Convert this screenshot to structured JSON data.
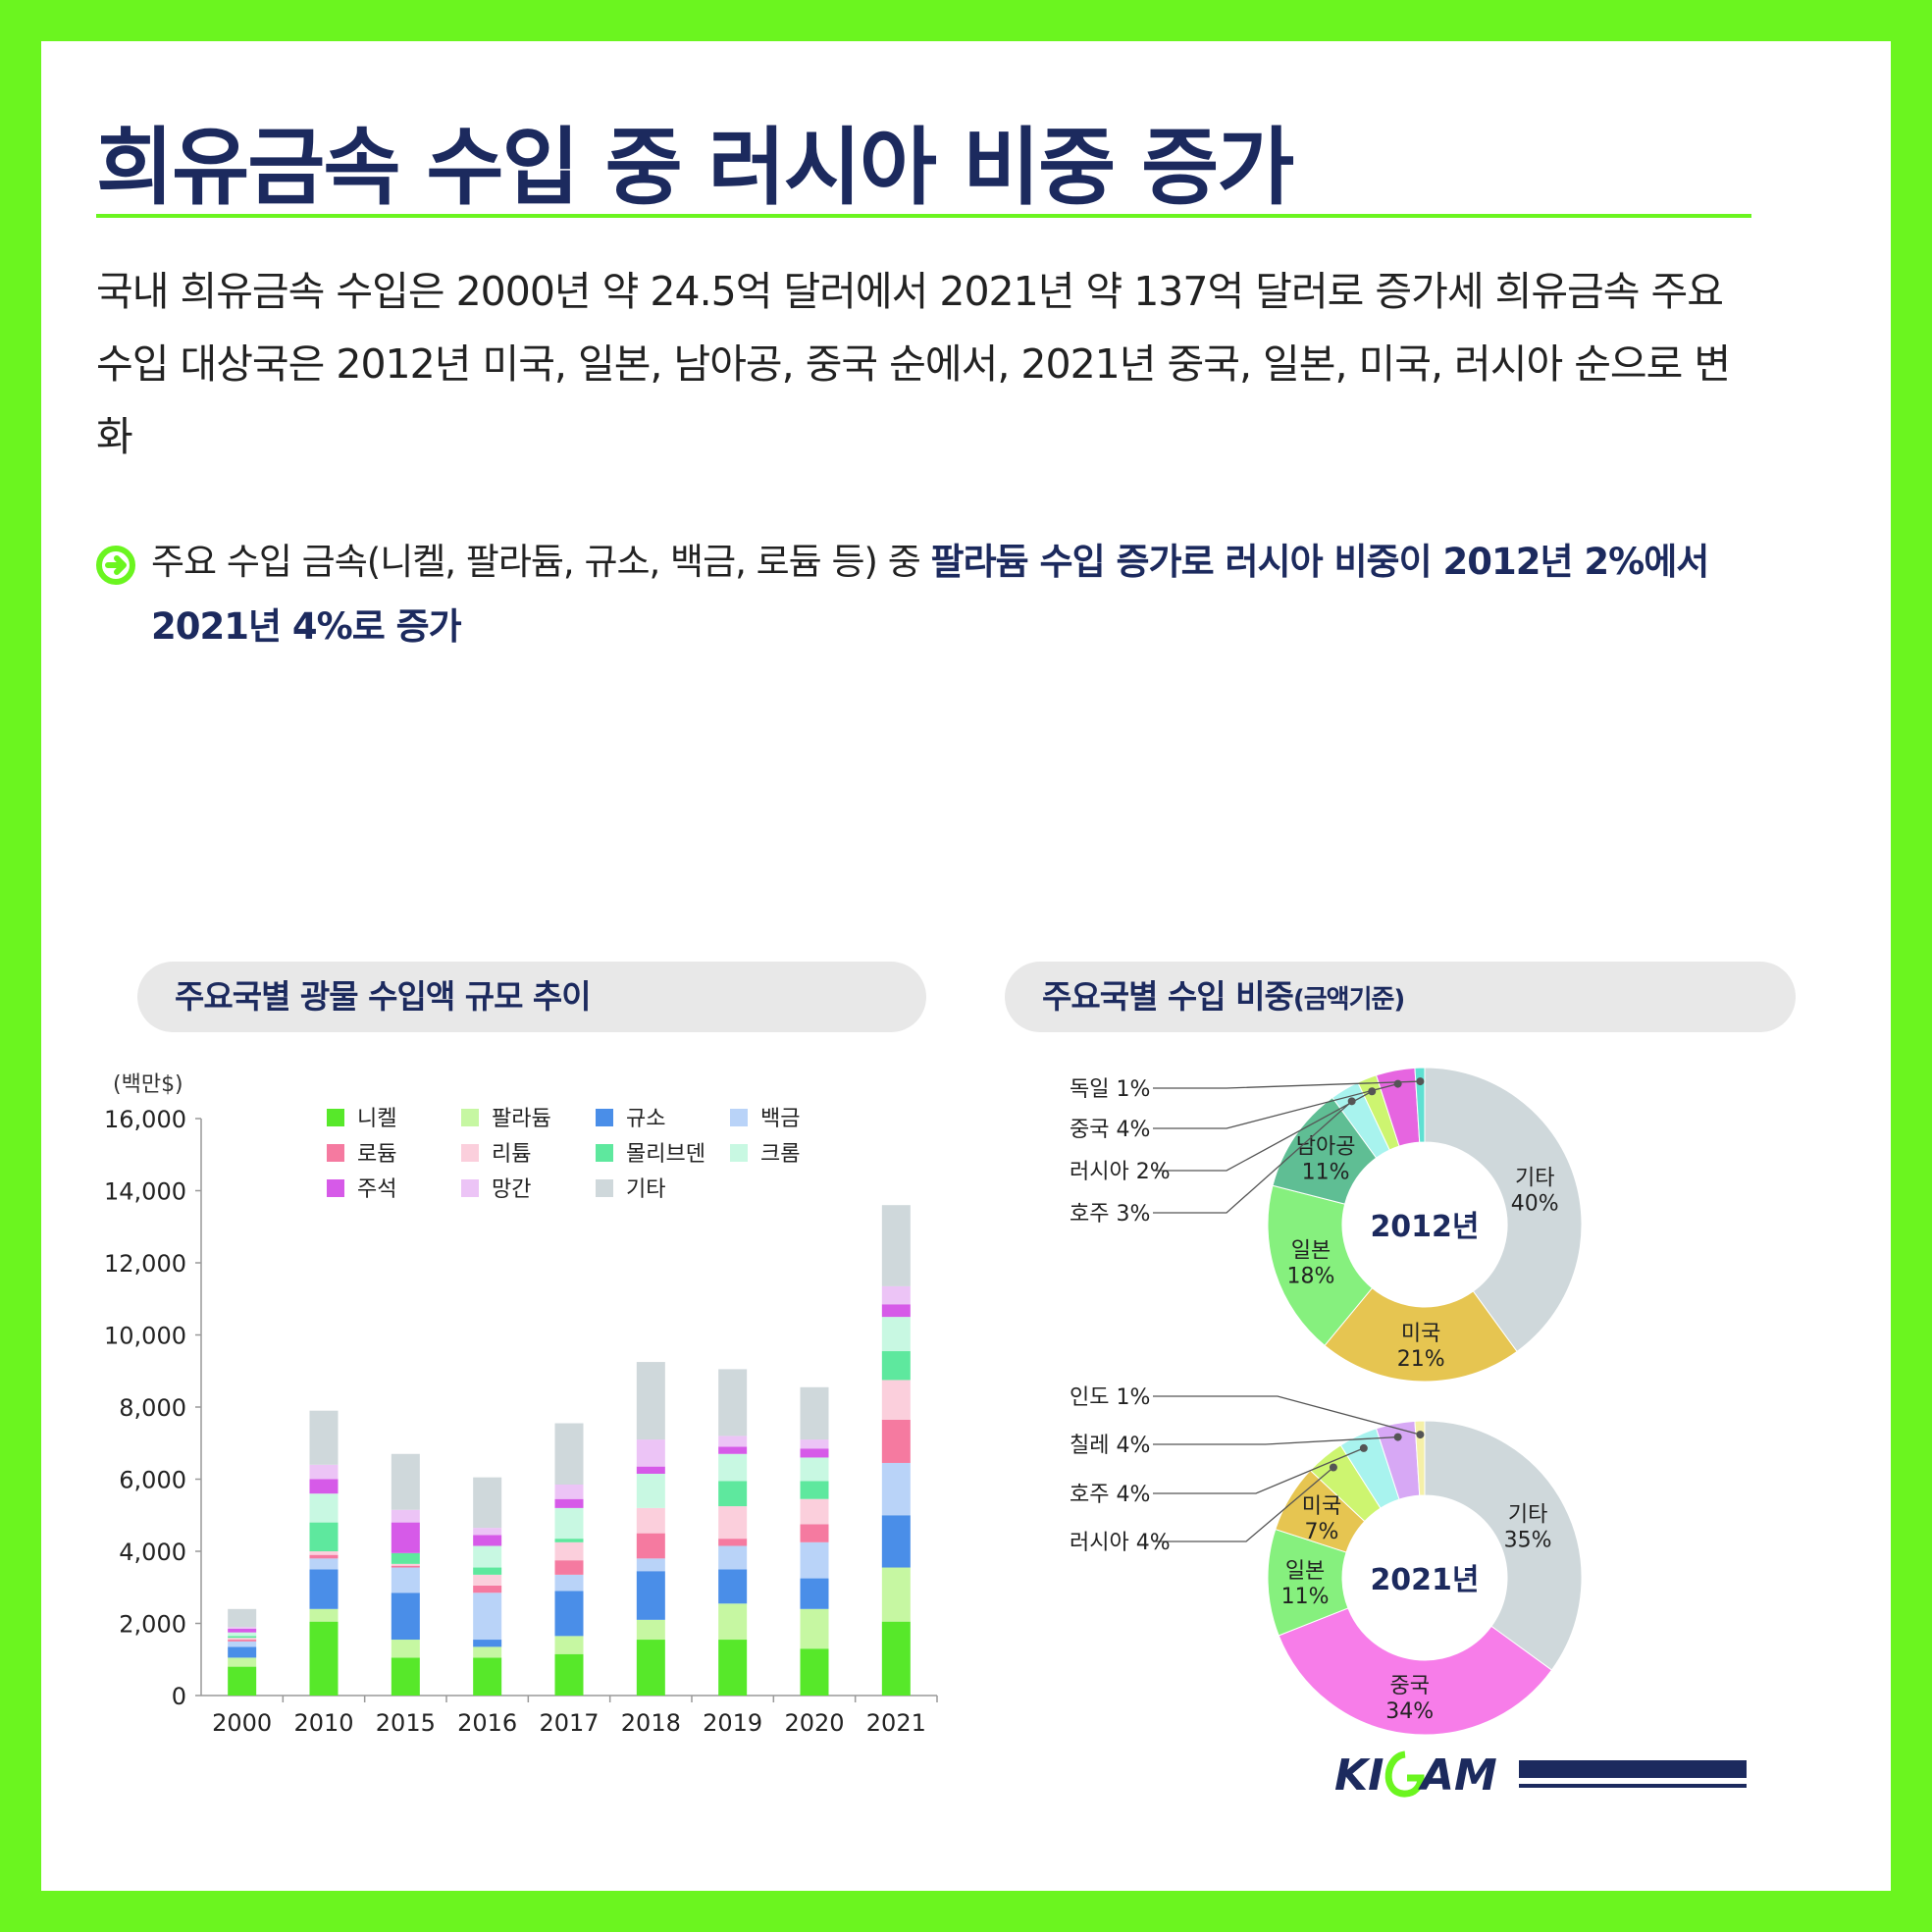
{
  "header": {
    "title": "희유금속 수입 중 러시아 비중 증가",
    "lead": "국내 희유금속 수입은 2000년 약 24.5억 달러에서 2021년 약 137억 달러로 증가세 희유금속 주요 수입 대상국은 2012년 미국, 일본, 남아공, 중국 순에서, 2021년 중국, 일본, 미국, 러시아 순으로 변화",
    "bullet_plain": "주요 수입 금속(니켈, 팔라듐, 규소, 백금, 로듐 등) 중 ",
    "bullet_highlight": "팔라듐 수입 증가로 러시아 비중이 2012년 2%에서 2021년 4%로 증가"
  },
  "colors": {
    "accent": "#6bf51f",
    "navy": "#1c2a5e",
    "pill": "#e8e8e8"
  },
  "bar_panel": {
    "heading": "주요국별 광물 수입액 규모 추이"
  },
  "pie_panel": {
    "heading": "주요국별 수입 비중",
    "heading_suffix": "(금액기준)"
  },
  "chart_data": [
    {
      "type": "bar",
      "stacked": true,
      "title": "주요국별 광물 수입액 규모 추이",
      "ylabel": "(백만$)",
      "ylim": [
        0,
        16000
      ],
      "yticks": [
        "0",
        "2,000",
        "4,000",
        "6,000",
        "8,000",
        "10,000",
        "12,000",
        "14,000",
        "16,000"
      ],
      "legend_position": "top",
      "categories": [
        "2000",
        "2010",
        "2015",
        "2016",
        "2017",
        "2018",
        "2019",
        "2020",
        "2021"
      ],
      "series": [
        {
          "name": "니켈",
          "color": "#57e82a",
          "values": [
            800,
            2050,
            1050,
            1050,
            1150,
            1550,
            1550,
            1300,
            2050
          ]
        },
        {
          "name": "팔라듐",
          "color": "#c6f7a2",
          "values": [
            250,
            350,
            500,
            300,
            500,
            550,
            1000,
            1100,
            1500
          ]
        },
        {
          "name": "규소",
          "color": "#4a8ee8",
          "values": [
            300,
            1100,
            1300,
            200,
            1250,
            1350,
            950,
            850,
            1450
          ]
        },
        {
          "name": "백금",
          "color": "#b9d3f8",
          "values": [
            150,
            300,
            700,
            1300,
            450,
            350,
            650,
            1000,
            1450
          ]
        },
        {
          "name": "로듐",
          "color": "#f57aa0",
          "values": [
            50,
            100,
            50,
            200,
            400,
            700,
            200,
            500,
            1200
          ]
        },
        {
          "name": "리튬",
          "color": "#fbcfdc",
          "values": [
            50,
            100,
            50,
            300,
            500,
            700,
            900,
            700,
            1100
          ]
        },
        {
          "name": "몰리브덴",
          "color": "#5ee89e",
          "values": [
            50,
            800,
            300,
            200,
            100,
            0,
            700,
            500,
            800
          ]
        },
        {
          "name": "크롬",
          "color": "#c8f8e2",
          "values": [
            100,
            800,
            0,
            600,
            850,
            950,
            750,
            650,
            950
          ]
        },
        {
          "name": "주석",
          "color": "#d65ae8",
          "values": [
            100,
            400,
            850,
            300,
            250,
            200,
            200,
            250,
            350
          ]
        },
        {
          "name": "망간",
          "color": "#ecc4f6",
          "values": [
            50,
            400,
            350,
            200,
            400,
            750,
            300,
            250,
            500
          ]
        },
        {
          "name": "기타",
          "color": "#cfd8db",
          "values": [
            500,
            1500,
            1550,
            1400,
            1700,
            2150,
            1850,
            1450,
            2250
          ]
        }
      ]
    },
    {
      "type": "pie",
      "title": "주요국별 수입 비중(금액기준)",
      "center_label": "2012년",
      "slices": [
        {
          "label": "기타",
          "value": 40,
          "color": "#cfd8db"
        },
        {
          "label": "미국",
          "value": 21,
          "color": "#e6c551"
        },
        {
          "label": "일본",
          "value": 18,
          "color": "#86f07e"
        },
        {
          "label": "남아공",
          "value": 11,
          "color": "#5fbe94"
        },
        {
          "label": "호주",
          "value": 3,
          "color": "#a8f3ee"
        },
        {
          "label": "러시아",
          "value": 2,
          "color": "#cdf570"
        },
        {
          "label": "중국",
          "value": 4,
          "color": "#e665e0"
        },
        {
          "label": "독일",
          "value": 1,
          "color": "#5fe0d2"
        }
      ]
    },
    {
      "type": "pie",
      "title": "주요국별 수입 비중(금액기준)",
      "center_label": "2021년",
      "slices": [
        {
          "label": "기타",
          "value": 35,
          "color": "#cfd8db"
        },
        {
          "label": "중국",
          "value": 34,
          "color": "#f77de9"
        },
        {
          "label": "일본",
          "value": 11,
          "color": "#86f07e"
        },
        {
          "label": "미국",
          "value": 7,
          "color": "#e6c551"
        },
        {
          "label": "러시아",
          "value": 4,
          "color": "#cdf570"
        },
        {
          "label": "호주",
          "value": 4,
          "color": "#a8f3ee"
        },
        {
          "label": "칠레",
          "value": 4,
          "color": "#d7a8f5"
        },
        {
          "label": "인도",
          "value": 1,
          "color": "#f5f0a8"
        }
      ]
    }
  ]
}
